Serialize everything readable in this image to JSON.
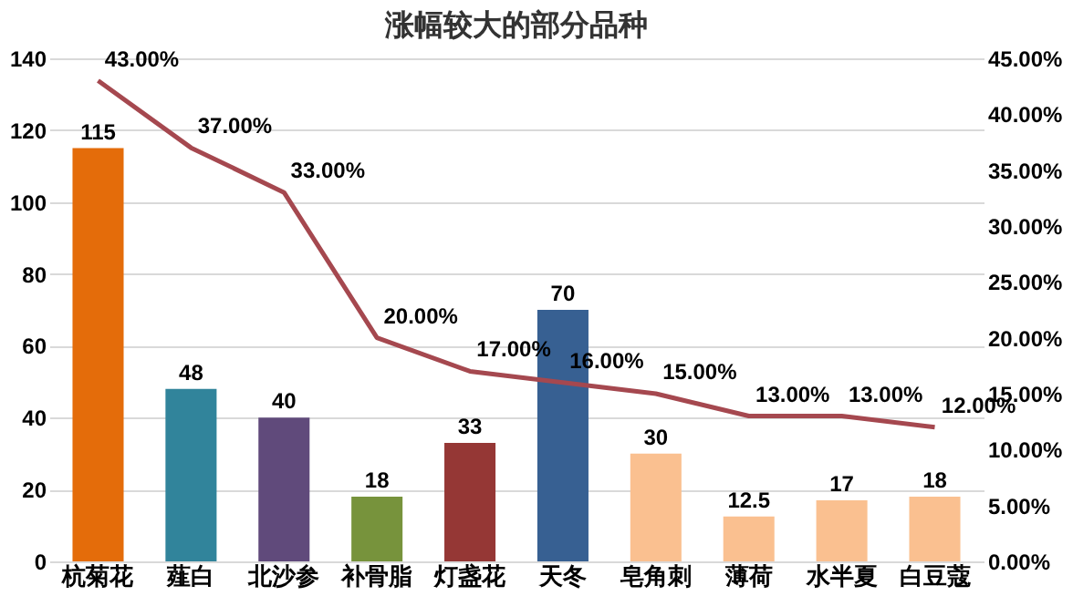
{
  "chart_data": {
    "type": "bar",
    "title": "涨幅较大的部分品种",
    "categories": [
      "杭菊花",
      "薤白",
      "北沙参",
      "补骨脂",
      "灯盏花",
      "天冬",
      "皂角刺",
      "薄荷",
      "水半夏",
      "白豆蔻"
    ],
    "series": [
      {
        "colors": [
          "#e46c0a",
          "#31849b",
          "#604a7b",
          "#77933c",
          "#953735",
          "#376092",
          "#fac090",
          "#fac090",
          "#fac090",
          "#fac090"
        ],
        "values": [
          115,
          48,
          40,
          18,
          33,
          70,
          30,
          12.5,
          17,
          18
        ],
        "value_labels": [
          "115",
          "48",
          "40",
          "18",
          "33",
          "70",
          "30",
          "12.5",
          "17",
          "18"
        ]
      },
      {
        "type": "line",
        "axis": "y2",
        "color": "#a5484f",
        "values": [
          43,
          37,
          33,
          20,
          17,
          16,
          15,
          13,
          13,
          12
        ],
        "value_labels": [
          "43.00%",
          "37.00%",
          "33.00%",
          "20.00%",
          "17.00%",
          "16.00%",
          "15.00%",
          "13.00%",
          "13.00%",
          "12.00%"
        ]
      }
    ],
    "ylim": [
      0,
      140
    ],
    "yticks": [
      0,
      20,
      40,
      60,
      80,
      100,
      120,
      140
    ],
    "y2lim": [
      0,
      45
    ],
    "y2ticks": [
      {
        "value": 0,
        "label": "0.00%"
      },
      {
        "value": 5,
        "label": "5.00%"
      },
      {
        "value": 10,
        "label": "10.00%"
      },
      {
        "value": 15,
        "label": "15.00%"
      },
      {
        "value": 20,
        "label": "20.00%"
      },
      {
        "value": 25,
        "label": "25.00%"
      },
      {
        "value": 30,
        "label": "30.00%"
      },
      {
        "value": 35,
        "label": "35.00%"
      },
      {
        "value": 40,
        "label": "40.00%"
      },
      {
        "value": 45,
        "label": "45.00%"
      }
    ],
    "grid": "y"
  }
}
